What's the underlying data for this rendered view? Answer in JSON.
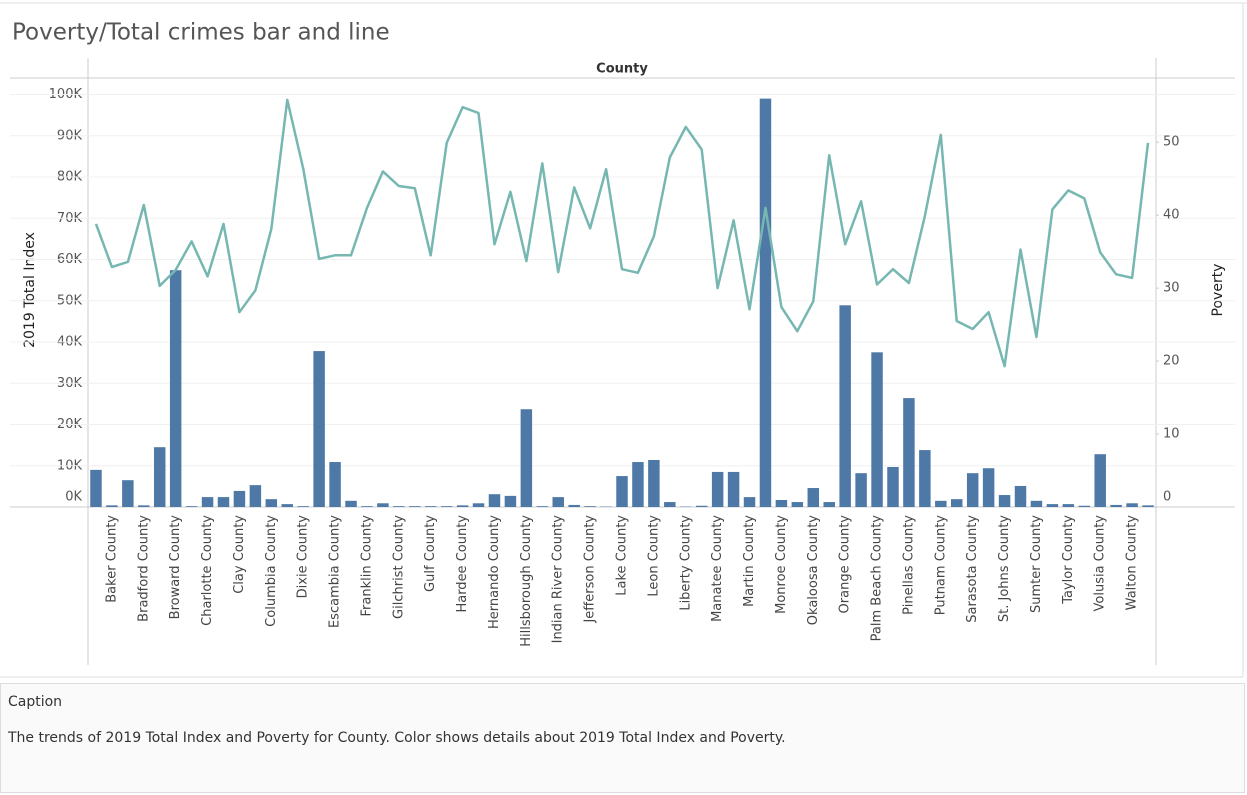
{
  "chart_data": {
    "type": "bar",
    "title": "Poverty/Total crimes bar and line",
    "x_label": "County",
    "categories": [
      null,
      "Baker County",
      null,
      "Bradford County",
      null,
      "Broward County",
      null,
      "Charlotte County",
      null,
      "Clay County",
      null,
      "Columbia County",
      null,
      "Dixie County",
      null,
      "Escambia County",
      null,
      "Franklin County",
      null,
      "Gilchrist County",
      null,
      "Gulf County",
      null,
      "Hardee County",
      null,
      "Hernando County",
      null,
      "Hillsborough County",
      null,
      "Indian River County",
      null,
      "Jefferson County",
      null,
      "Lake County",
      null,
      "Leon County",
      null,
      "Liberty County",
      null,
      "Manatee County",
      null,
      "Martin County",
      null,
      "Monroe County",
      null,
      "Okaloosa County",
      null,
      "Orange County",
      null,
      "Palm Beach County",
      null,
      "Pinellas County",
      null,
      "Putnam County",
      null,
      "Sarasota County",
      null,
      "St. Johns County",
      null,
      "Sumter County",
      null,
      "Taylor County",
      null,
      "Volusia County",
      null,
      "Walton County",
      null
    ],
    "series": [
      {
        "name": "2019 Total Index",
        "type": "bar",
        "color": "#4e79a7",
        "values": [
          9000,
          400,
          6500,
          400,
          14500,
          57400,
          200,
          2400,
          2400,
          3900,
          5300,
          1900,
          700,
          200,
          37800,
          10900,
          1500,
          200,
          900,
          200,
          200,
          200,
          200,
          400,
          900,
          3100,
          2700,
          23700,
          200,
          2400,
          500,
          200,
          100,
          7500,
          10900,
          11400,
          1200,
          100,
          300,
          8500,
          8500,
          2400,
          99000,
          1700,
          1200,
          4600,
          1200,
          48900,
          8200,
          37500,
          9700,
          26400,
          13800,
          1500,
          1900,
          8200,
          9400,
          2900,
          5100,
          1500,
          700,
          700,
          300,
          12800,
          500,
          900,
          400
        ]
      },
      {
        "name": "Poverty",
        "type": "line",
        "axis": "y2",
        "color": "#76b7b2",
        "values": [
          38.8,
          32.9,
          33.6,
          41.4,
          30.3,
          32.5,
          36.4,
          31.6,
          38.8,
          26.7,
          29.7,
          38.1,
          55.8,
          46.4,
          34.0,
          34.5,
          34.5,
          41.0,
          46.0,
          44.0,
          43.7,
          34.5,
          49.9,
          54.8,
          54.0,
          36.0,
          43.2,
          33.7,
          47.1,
          32.2,
          43.8,
          38.2,
          46.3,
          32.6,
          32.1,
          37.1,
          47.9,
          52.1,
          49.0,
          30.0,
          39.3,
          27.1,
          41.0,
          27.4,
          24.1,
          28.2,
          48.2,
          36.0,
          41.9,
          30.5,
          32.6,
          30.7,
          39.9,
          51.0,
          25.5,
          24.4,
          26.7,
          19.3,
          35.3,
          23.3,
          40.8,
          43.4,
          42.3,
          34.9,
          31.9,
          31.4,
          49.9
        ]
      }
    ],
    "ylim": [
      0,
      104000
    ],
    "yticks": [
      {
        "value": 0,
        "label": "0K"
      },
      {
        "value": 10000,
        "label": "10K"
      },
      {
        "value": 20000,
        "label": "20K"
      },
      {
        "value": 30000,
        "label": "30K"
      },
      {
        "value": 40000,
        "label": "40K"
      },
      {
        "value": 50000,
        "label": "50K"
      },
      {
        "value": 60000,
        "label": "60K"
      },
      {
        "value": 70000,
        "label": "70K"
      },
      {
        "value": 80000,
        "label": "80K"
      },
      {
        "value": 90000,
        "label": "90K"
      },
      {
        "value": 100000,
        "label": "100K"
      }
    ],
    "y2lim": [
      0,
      58.8
    ],
    "y2ticks": [
      0,
      10,
      20,
      30,
      40,
      50
    ],
    "grid": true
  },
  "caption": {
    "heading": "Caption",
    "text": "The trends of 2019 Total Index and Poverty for County.  Color shows details about 2019 Total Index and Poverty."
  }
}
